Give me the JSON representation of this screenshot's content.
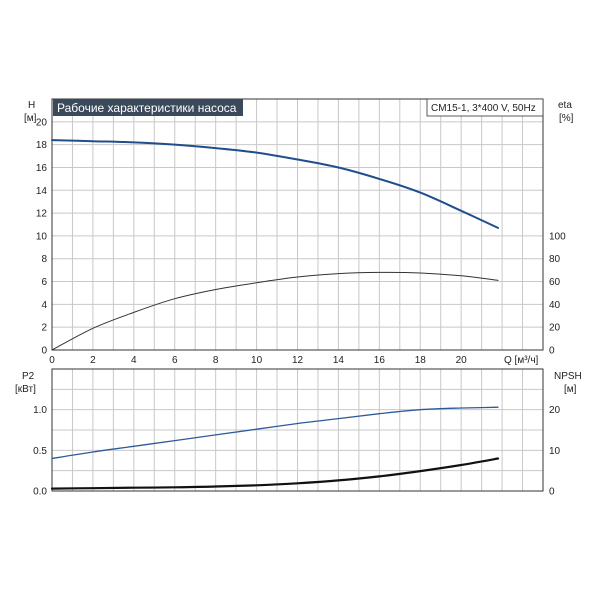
{
  "title": "Рабочие характеристики насоса",
  "model": "CM15-1, 3*400 V, 50Hz",
  "colors": {
    "head": "#1f4e8c",
    "eta": "#333333",
    "p2": "#2e5a9c",
    "npsh": "#111111",
    "title_bg": "#3a4a5c"
  },
  "chart_data": [
    {
      "type": "line",
      "panel": "top",
      "y_left_label": [
        "H",
        "[м]"
      ],
      "y_right_label": [
        "eta",
        "[%]"
      ],
      "x_label": "Q [м³/ч]",
      "xlim": [
        0,
        24
      ],
      "ylim_left": [
        0,
        22
      ],
      "ylim_right": [
        0,
        220
      ],
      "x_ticks": [
        "0",
        "2",
        "4",
        "6",
        "8",
        "10",
        "12",
        "14",
        "16",
        "18",
        "20"
      ],
      "y_left_ticks": [
        "0",
        "2",
        "4",
        "6",
        "8",
        "10",
        "12",
        "14",
        "16",
        "18",
        "20"
      ],
      "y_right_ticks": [
        "0",
        "20",
        "40",
        "60",
        "80",
        "100"
      ],
      "series": [
        {
          "key": "head",
          "axis": "left",
          "x": [
            0,
            2,
            4,
            6,
            8,
            10,
            12,
            14,
            16,
            18,
            20,
            21.8
          ],
          "y": [
            18.4,
            18.3,
            18.2,
            18.0,
            17.7,
            17.3,
            16.7,
            16.0,
            15.0,
            13.8,
            12.2,
            10.7
          ]
        },
        {
          "key": "eta",
          "axis": "right",
          "x": [
            0,
            2,
            4,
            6,
            8,
            10,
            12,
            14,
            16,
            18,
            20,
            21.8
          ],
          "y": [
            0,
            19,
            33,
            45,
            53,
            59,
            64,
            67,
            68,
            67.5,
            65,
            61
          ]
        }
      ]
    },
    {
      "type": "line",
      "panel": "bottom",
      "y_left_label": [
        "P2",
        "[кВт]"
      ],
      "y_right_label": [
        "NPSH",
        "[м]"
      ],
      "xlim": [
        0,
        24
      ],
      "ylim_left": [
        0,
        1.5
      ],
      "ylim_right": [
        0,
        30
      ],
      "y_left_ticks": [
        "0.0",
        "0.5",
        "1.0"
      ],
      "y_right_ticks": [
        "0",
        "10",
        "20"
      ],
      "series": [
        {
          "key": "p2",
          "axis": "left",
          "x": [
            0,
            2,
            4,
            6,
            8,
            10,
            12,
            14,
            16,
            18,
            20,
            21.8
          ],
          "y": [
            0.4,
            0.48,
            0.55,
            0.62,
            0.69,
            0.76,
            0.83,
            0.89,
            0.95,
            1.0,
            1.02,
            1.03
          ]
        },
        {
          "key": "npsh",
          "axis": "right",
          "x": [
            0,
            2,
            4,
            6,
            8,
            10,
            12,
            14,
            16,
            18,
            20,
            21.8
          ],
          "y": [
            0.6,
            0.7,
            0.8,
            0.9,
            1.1,
            1.4,
            1.9,
            2.6,
            3.6,
            4.9,
            6.4,
            8.0
          ]
        }
      ]
    }
  ]
}
